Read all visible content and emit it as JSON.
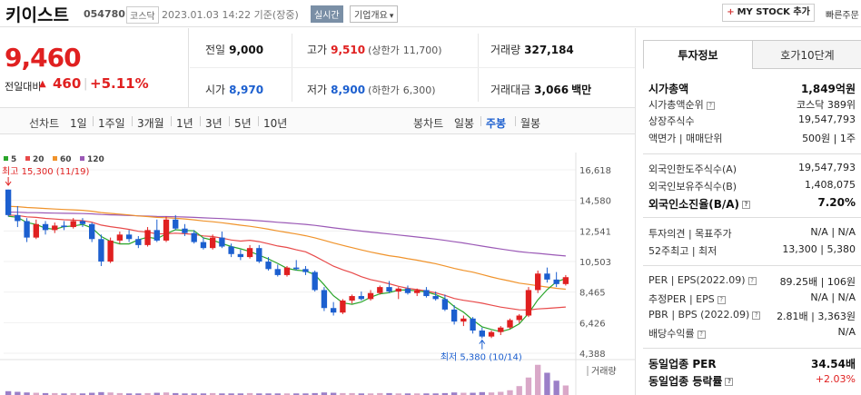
{
  "header": {
    "stock_name": "키이스트",
    "stock_code": "054780",
    "market": "코스닥",
    "datetime": "2023.01.03 14:22  기준(장중)",
    "realtime_label": "실시간",
    "overview_label": "기업개요",
    "overview_arrow": "▾",
    "mystock_plus": "+",
    "mystock_label": "MY STOCK 추가",
    "fast_order_label": "빠른주문"
  },
  "price": {
    "current": "9,460",
    "prev_diff_label": "전일대비",
    "up_triangle": "▲",
    "change": "460",
    "separator": "|",
    "change_pct": "+5.11%"
  },
  "quote": {
    "prev_close_label": "전일",
    "prev_close": "9,000",
    "high_label": "고가",
    "high": "9,510",
    "upper_limit_label": "(상한가",
    "upper_limit": "11,700)",
    "volume_label": "거래량",
    "volume": "327,184",
    "open_label": "시가",
    "open": "8,970",
    "low_label": "저가",
    "low": "8,900",
    "lower_limit_label": "(하한가",
    "lower_limit": "6,300)",
    "amount_label": "거래대금",
    "amount": "3,066",
    "amount_unit": "백만"
  },
  "period_tabs": {
    "line_chart_label": "선차트",
    "items": [
      "1일",
      "1주일",
      "3개월",
      "1년",
      "3년",
      "5년",
      "10년"
    ],
    "candle_label": "봉차트",
    "candle_items": [
      "일봉",
      "주봉",
      "월봉"
    ],
    "candle_active": "주봉"
  },
  "colors": {
    "up": "#e02020",
    "down": "#1c5fcf",
    "ma5": "#2aa52a",
    "ma20": "#e84a4a",
    "ma60": "#f0932b",
    "ma120": "#9b59b6"
  },
  "chart_data": {
    "type": "candlestick",
    "period": "weekly",
    "legend": [
      "5",
      "20",
      "60",
      "120"
    ],
    "y_ticks": [
      16618,
      14580,
      12541,
      10503,
      8465,
      6426,
      4388
    ],
    "y_tick_labels": [
      "16,618",
      "14,580",
      "12,541",
      "10,503",
      "8,465",
      "6,426",
      "4,388"
    ],
    "ylim": [
      4388,
      16618
    ],
    "max_label": "최고 15,300 (11/19)",
    "min_label": "최저 5,380 (10/14)",
    "max_value": 15300,
    "min_value": 5380,
    "volume_label": "거래량",
    "candles": [
      [
        15300,
        15300,
        13500,
        13600
      ],
      [
        13600,
        14200,
        12800,
        13200
      ],
      [
        13200,
        13400,
        11800,
        12100
      ],
      [
        12100,
        13300,
        12000,
        13000
      ],
      [
        13000,
        13200,
        12300,
        12600
      ],
      [
        12600,
        13100,
        12400,
        12900
      ],
      [
        12900,
        13200,
        12600,
        12800
      ],
      [
        12800,
        13400,
        12700,
        13200
      ],
      [
        13200,
        13400,
        12800,
        13000
      ],
      [
        13000,
        13100,
        11800,
        12000
      ],
      [
        12000,
        12300,
        10200,
        10500
      ],
      [
        10500,
        12100,
        10400,
        11900
      ],
      [
        11900,
        12500,
        11700,
        12300
      ],
      [
        12300,
        12600,
        11800,
        12000
      ],
      [
        12000,
        12200,
        11400,
        11600
      ],
      [
        11600,
        12800,
        11500,
        12600
      ],
      [
        12600,
        13300,
        11800,
        11900
      ],
      [
        11900,
        13500,
        11800,
        13300
      ],
      [
        13300,
        13600,
        12600,
        12700
      ],
      [
        12700,
        13000,
        12200,
        12400
      ],
      [
        12400,
        12600,
        11700,
        11800
      ],
      [
        11800,
        12100,
        11300,
        11400
      ],
      [
        11400,
        12300,
        11300,
        12100
      ],
      [
        12100,
        12500,
        11400,
        11500
      ],
      [
        11500,
        11700,
        10800,
        11000
      ],
      [
        11000,
        11300,
        10600,
        10800
      ],
      [
        10800,
        11600,
        10700,
        11400
      ],
      [
        11400,
        11600,
        10400,
        10500
      ],
      [
        10500,
        10800,
        9900,
        10000
      ],
      [
        10000,
        10300,
        9500,
        9600
      ],
      [
        9600,
        10200,
        9500,
        10100
      ],
      [
        10100,
        10600,
        9900,
        10000
      ],
      [
        10000,
        10200,
        9600,
        9800
      ],
      [
        9800,
        9900,
        8500,
        8600
      ],
      [
        8600,
        8800,
        7200,
        7400
      ],
      [
        7400,
        7800,
        6900,
        7100
      ],
      [
        7100,
        8000,
        7000,
        7900
      ],
      [
        7900,
        8300,
        7700,
        8200
      ],
      [
        8200,
        8500,
        7900,
        8000
      ],
      [
        8000,
        8600,
        7900,
        8400
      ],
      [
        8400,
        8900,
        8300,
        8800
      ],
      [
        8800,
        9200,
        8400,
        8500
      ],
      [
        8500,
        8800,
        8000,
        8700
      ],
      [
        8700,
        8900,
        8300,
        8400
      ],
      [
        8400,
        8700,
        8200,
        8600
      ],
      [
        8600,
        8800,
        8100,
        8200
      ],
      [
        8200,
        8500,
        7900,
        8000
      ],
      [
        8000,
        8300,
        7200,
        7300
      ],
      [
        7300,
        7600,
        6300,
        6500
      ],
      [
        6500,
        6900,
        6200,
        6700
      ],
      [
        6700,
        6800,
        5700,
        5900
      ],
      [
        5900,
        6100,
        5380,
        5500
      ],
      [
        5500,
        5900,
        5400,
        5800
      ],
      [
        5800,
        6200,
        5600,
        6100
      ],
      [
        6100,
        6700,
        6000,
        6600
      ],
      [
        6600,
        7000,
        6400,
        6900
      ],
      [
        6900,
        8800,
        6800,
        8600
      ],
      [
        8600,
        9900,
        8400,
        9700
      ],
      [
        9700,
        10100,
        9100,
        9300
      ],
      [
        9300,
        9800,
        8800,
        9000
      ],
      [
        9000,
        9600,
        8900,
        9460
      ]
    ],
    "volumes": [
      0.12,
      0.1,
      0.08,
      0.07,
      0.06,
      0.06,
      0.05,
      0.06,
      0.05,
      0.07,
      0.09,
      0.08,
      0.06,
      0.05,
      0.05,
      0.06,
      0.07,
      0.08,
      0.06,
      0.05,
      0.05,
      0.05,
      0.06,
      0.05,
      0.05,
      0.05,
      0.06,
      0.05,
      0.05,
      0.05,
      0.05,
      0.05,
      0.05,
      0.06,
      0.08,
      0.07,
      0.06,
      0.06,
      0.05,
      0.05,
      0.06,
      0.06,
      0.05,
      0.05,
      0.05,
      0.05,
      0.05,
      0.06,
      0.08,
      0.07,
      0.07,
      0.09,
      0.08,
      0.1,
      0.15,
      0.28,
      0.55,
      0.95,
      0.7,
      0.45,
      0.3
    ],
    "volume_bar_colors": [
      "down",
      "down",
      "down",
      "up",
      "down",
      "up",
      "down",
      "up",
      "down",
      "down",
      "down",
      "up",
      "up",
      "down",
      "down",
      "up",
      "down",
      "up",
      "down",
      "down",
      "down",
      "down",
      "up",
      "down",
      "down",
      "down",
      "up",
      "down",
      "down",
      "down",
      "up",
      "down",
      "down",
      "down",
      "down",
      "down",
      "up",
      "up",
      "down",
      "up",
      "up",
      "down",
      "up",
      "down",
      "up",
      "down",
      "down",
      "down",
      "down",
      "up",
      "down",
      "down",
      "up",
      "up",
      "up",
      "up",
      "up",
      "up",
      "down",
      "down",
      "up"
    ]
  },
  "right_panel": {
    "tab_invest": "투자정보",
    "tab_orderbook": "호가10단계",
    "market_cap_label": "시가총액",
    "market_cap": "1,849억원",
    "market_cap_rank_label": "시가총액순위",
    "market_cap_rank": "코스닥 389위",
    "shares_label": "상장주식수",
    "shares": "19,547,793",
    "par_label": "액면가 | 매매단위",
    "par": "500원 | 1주",
    "foreign_limit_label": "외국인한도주식수(A)",
    "foreign_limit": "19,547,793",
    "foreign_hold_label": "외국인보유주식수(B)",
    "foreign_hold": "1,408,075",
    "foreign_ratio_label": "외국인소진율(B/A)",
    "foreign_ratio": "7.20%",
    "opinion_label": "투자의견 | 목표주가",
    "opinion": "N/A | N/A",
    "w52_label": "52주최고 | 최저",
    "w52": "13,300 | 5,380",
    "per_label": "PER | EPS(2022.09)",
    "per": "89.25배 | 106원",
    "est_per_label": "추정PER | EPS",
    "est_per": "N/A | N/A",
    "pbr_label": "PBR | BPS (2022.09)",
    "pbr": "2.81배 | 3,363원",
    "div_label": "배당수익률",
    "div": "N/A",
    "sector_per_label": "동일업종 PER",
    "sector_per": "34.54배",
    "sector_rate_label": "동일업종 등락률",
    "sector_rate": "+2.03%",
    "help_mark": "?"
  }
}
